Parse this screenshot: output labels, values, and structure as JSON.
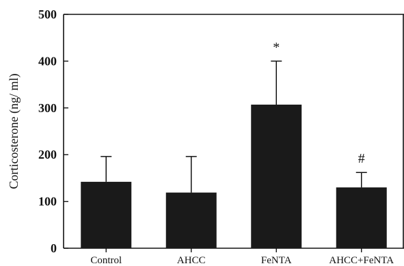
{
  "chart_data": {
    "type": "bar",
    "categories": [
      "Control",
      "AHCC",
      "FeNTA",
      "AHCC+FeNTA"
    ],
    "values": [
      142,
      119,
      307,
      130
    ],
    "errors_upper": [
      196,
      196,
      400,
      162
    ],
    "annotations": [
      "",
      "",
      "*",
      "#"
    ],
    "title": "",
    "xlabel": "",
    "ylabel": "Corticosterone (ng/ ml)",
    "ylim": [
      0,
      500
    ],
    "yticks": [
      "0",
      "100",
      "200",
      "300",
      "400",
      "500"
    ],
    "grid": false,
    "bar_color": "#1a1a1a"
  }
}
